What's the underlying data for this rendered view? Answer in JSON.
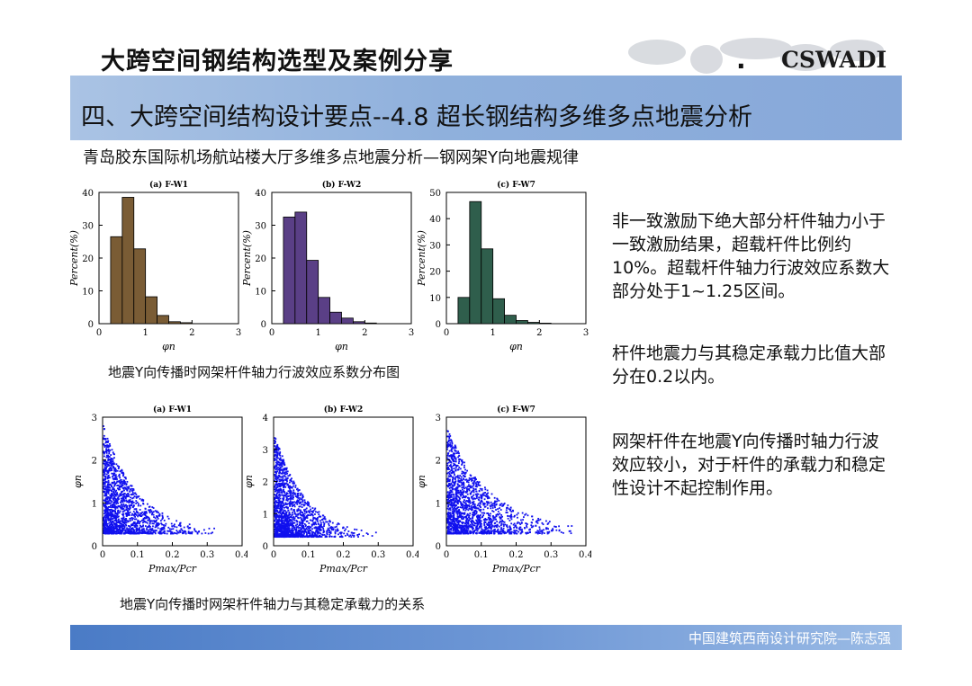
{
  "header": {
    "title": "大跨空间钢结构选型及案例分享",
    "logo": "CSWADI",
    "logo_dot": ".",
    "section_title": "四、大跨空间结构设计要点--4.8 超长钢结构多维多点地震分析",
    "subtitle": "青岛胶东国际机场航站楼大厅多维多点地震分析—钢网架Y向地震规律"
  },
  "captions": {
    "histograms": "地震Y向传播时网架杆件轴力行波效应系数分布图",
    "scatters": "地震Y向传播时网架杆件轴力与其稳定承载力的关系"
  },
  "notes": [
    "非一致激励下绝大部分杆件轴力小于一致激励结果，超载杆件比例约10%。超载杆件轴力行波效应系数大部分处于1~1.25区间。",
    "杆件地震力与其稳定承载力比值大部分在0.2以内。",
    "网架杆件在地震Y向传播时轴力行波效应较小，对于杆件的承载力和稳定性设计不起控制作用。"
  ],
  "footer": {
    "text": "中国建筑西南设计研究院—陈志强"
  },
  "colors": {
    "w1": "#7a5c35",
    "w2": "#5a3f86",
    "w7": "#2f5e4c",
    "scatter": "#1010ee"
  },
  "chart_data": [
    {
      "type": "bar",
      "title": "(a) F-W1",
      "xlabel": "φn",
      "ylabel": "Percent(%)",
      "xlim": [
        0,
        3
      ],
      "ylim": [
        0,
        40
      ],
      "xticks": [
        0,
        1,
        2,
        3
      ],
      "yticks": [
        0,
        10,
        20,
        30,
        40
      ],
      "bin_width": 0.25,
      "bin_starts": [
        0.25,
        0.5,
        0.75,
        1.0,
        1.25,
        1.5,
        1.75
      ],
      "values": [
        26.5,
        38.5,
        22.8,
        8.2,
        2.5,
        0.6,
        0.3
      ],
      "color_key": "w1"
    },
    {
      "type": "bar",
      "title": "(b) F-W2",
      "xlabel": "φn",
      "ylabel": "Percent(%)",
      "xlim": [
        0,
        3
      ],
      "ylim": [
        0,
        40
      ],
      "xticks": [
        0,
        1,
        2,
        3
      ],
      "yticks": [
        0,
        10,
        20,
        30,
        40
      ],
      "bin_width": 0.25,
      "bin_starts": [
        0.25,
        0.5,
        0.75,
        1.0,
        1.25,
        1.5,
        1.75,
        2.0
      ],
      "values": [
        32.5,
        34.0,
        19.3,
        8.0,
        3.5,
        1.7,
        0.6,
        0.2
      ],
      "color_key": "w2"
    },
    {
      "type": "bar",
      "title": "(c) F-W7",
      "xlabel": "φn",
      "ylabel": "Percent(%)",
      "xlim": [
        0,
        3
      ],
      "ylim": [
        0,
        50
      ],
      "xticks": [
        0,
        1,
        2,
        3
      ],
      "yticks": [
        0,
        10,
        20,
        30,
        40,
        50
      ],
      "bin_width": 0.25,
      "bin_starts": [
        0.25,
        0.5,
        0.75,
        1.0,
        1.25,
        1.5,
        1.75,
        2.0
      ],
      "values": [
        10.0,
        46.5,
        28.5,
        9.5,
        3.2,
        1.2,
        0.5,
        0.2
      ],
      "color_key": "w7"
    },
    {
      "type": "scatter",
      "title": "(a) F-W1",
      "xlabel": "Pmax/Pcr",
      "ylabel": "φn",
      "xlim": [
        0,
        0.4
      ],
      "ylim": [
        0,
        3
      ],
      "xticks": [
        0,
        0.1,
        0.2,
        0.3,
        0.4
      ],
      "yticks": [
        0,
        1,
        2,
        3
      ],
      "xtick_labels": [
        "0",
        "0.1",
        "0.2",
        "0.3",
        "0.4"
      ],
      "yscale": 2.5,
      "xscale": 0.06,
      "xmax": 0.33,
      "color_key": "scatter"
    },
    {
      "type": "scatter",
      "title": "(b) F-W2",
      "xlabel": "Pmax/Pcr",
      "ylabel": "φn",
      "xlim": [
        0,
        0.4
      ],
      "ylim": [
        0,
        4
      ],
      "xticks": [
        0,
        0.1,
        0.2,
        0.3,
        0.4
      ],
      "yticks": [
        0,
        1,
        2,
        3,
        4
      ],
      "xtick_labels": [
        "0",
        "0.1",
        "0.2",
        "0.3",
        "0.4"
      ],
      "yscale": 3.2,
      "xscale": 0.055,
      "xmax": 0.37,
      "color_key": "scatter"
    },
    {
      "type": "scatter",
      "title": "(c) F-W7",
      "xlabel": "Pmax/Pcr",
      "ylabel": "φn",
      "xlim": [
        0,
        0.4
      ],
      "ylim": [
        0,
        3
      ],
      "xticks": [
        0,
        0.1,
        0.2,
        0.3,
        0.4
      ],
      "yticks": [
        0,
        1,
        2,
        3
      ],
      "xtick_labels": [
        "0",
        "0.1",
        "0.2",
        "0.3",
        "0.4"
      ],
      "yscale": 2.4,
      "xscale": 0.08,
      "xmax": 0.36,
      "color_key": "scatter"
    }
  ]
}
